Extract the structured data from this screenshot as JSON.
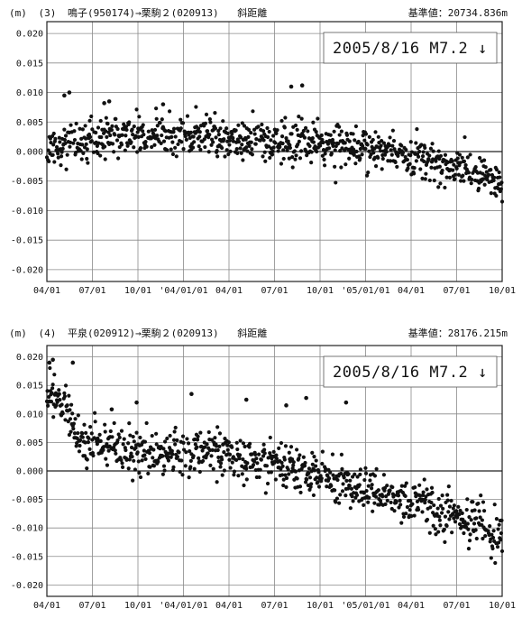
{
  "chart_data": [
    {
      "type": "scatter",
      "unit": "(m)",
      "panel_no": "(3)",
      "route": "鳴子(950174)→栗駒２(020913)",
      "measure": "斜距離",
      "reference": "基準値：20734.836m",
      "annotation": "2005/8/16 M7.2 ↓",
      "ylim": [
        -0.022,
        0.022
      ],
      "yticks": [
        "0.020",
        "0.015",
        "0.010",
        "0.005",
        "0.000",
        "-0.005",
        "-0.010",
        "-0.015",
        "-0.020"
      ],
      "xticks": [
        "04/01",
        "07/01",
        "10/01",
        "'04/01/01",
        "04/01",
        "07/01",
        "10/01",
        "'05/01/01",
        "04/01",
        "07/01",
        "10/01"
      ],
      "x_range_days": [
        0,
        913
      ],
      "grid": true,
      "trend_days": [
        0,
        60,
        120,
        180,
        240,
        300,
        360,
        420,
        480,
        540,
        600,
        660,
        720,
        780,
        840,
        913
      ],
      "trend_values": [
        0.0,
        0.0015,
        0.0025,
        0.0028,
        0.0027,
        0.0025,
        0.0023,
        0.0021,
        0.0018,
        0.0015,
        0.001,
        0.0002,
        -0.0008,
        -0.0018,
        -0.0032,
        -0.0055
      ],
      "scatter_sd": 0.0017,
      "outliers_days": [
        35,
        45,
        115,
        125,
        233,
        490,
        512
      ],
      "outliers_values": [
        0.0095,
        0.01,
        0.0082,
        0.0085,
        0.008,
        0.011,
        0.0112
      ]
    },
    {
      "type": "scatter",
      "unit": "(m)",
      "panel_no": "(4)",
      "route": "平泉(020912)→栗駒２(020913)",
      "measure": "斜距離",
      "reference": "基準値：28176.215m",
      "annotation": "2005/8/16 M7.2 ↓",
      "ylim": [
        -0.022,
        0.022
      ],
      "yticks": [
        "0.020",
        "0.015",
        "0.010",
        "0.005",
        "0.000",
        "-0.005",
        "-0.010",
        "-0.015",
        "-0.020"
      ],
      "xticks": [
        "04/01",
        "07/01",
        "10/01",
        "'04/01/01",
        "04/01",
        "07/01",
        "10/01",
        "'05/01/01",
        "04/01",
        "07/01",
        "10/01"
      ],
      "x_range_days": [
        0,
        913
      ],
      "grid": true,
      "trend_days": [
        0,
        20,
        40,
        60,
        90,
        150,
        210,
        270,
        330,
        390,
        450,
        510,
        570,
        630,
        690,
        750,
        810,
        870,
        913
      ],
      "trend_values": [
        0.014,
        0.013,
        0.011,
        0.006,
        0.0048,
        0.0038,
        0.0033,
        0.0032,
        0.003,
        0.0024,
        0.0015,
        0.0003,
        -0.0012,
        -0.003,
        -0.0048,
        -0.0062,
        -0.0078,
        -0.0092,
        -0.0118
      ],
      "scatter_sd": 0.002,
      "outliers_days": [
        5,
        12,
        52,
        130,
        180,
        290,
        400,
        480,
        600,
        520
      ],
      "outliers_values": [
        0.019,
        0.0195,
        0.019,
        0.0108,
        0.012,
        0.0135,
        0.0125,
        0.0115,
        0.012,
        0.0128
      ]
    }
  ]
}
